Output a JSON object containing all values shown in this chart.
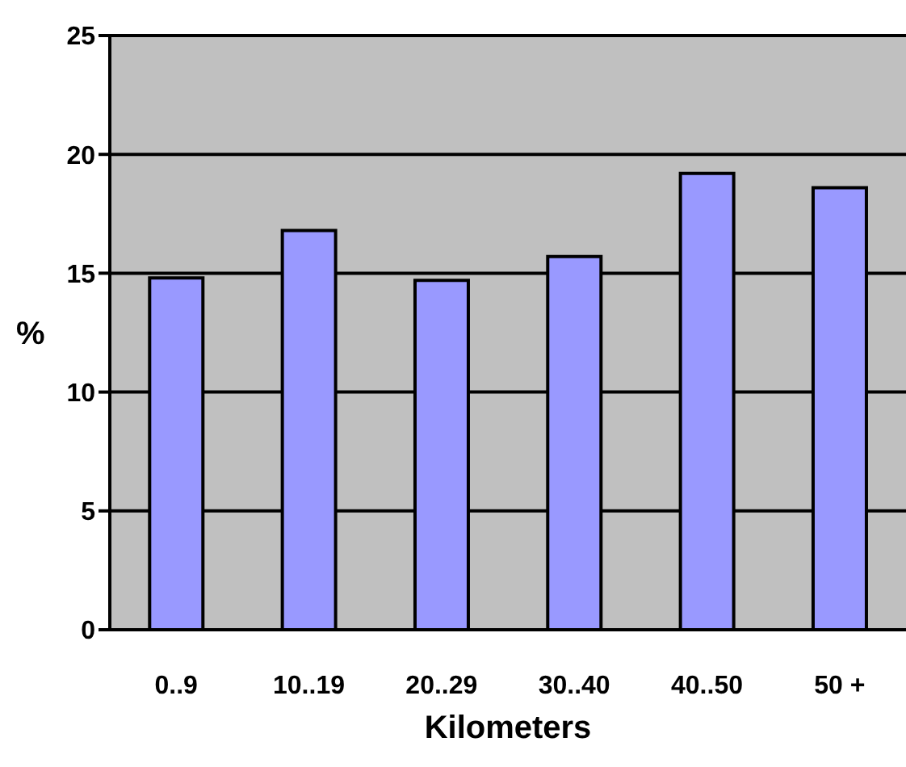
{
  "chart_data": {
    "type": "bar",
    "xlabel": "Kilometers",
    "ylabel": "%",
    "categories": [
      "0..9",
      "10..19",
      "20..29",
      "30..40",
      "40..50",
      "50 +"
    ],
    "values": [
      14.8,
      16.8,
      14.7,
      15.7,
      19.2,
      18.6
    ],
    "color": "#9999ff",
    "ylim": [
      0,
      25
    ],
    "yticks": [
      0,
      5,
      10,
      15,
      20,
      25
    ],
    "grid": "y",
    "legend": false
  }
}
